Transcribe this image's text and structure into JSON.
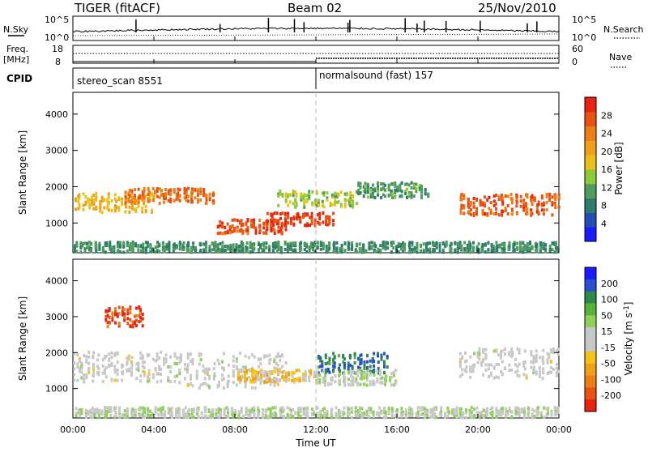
{
  "header": {
    "station": "TIGER (fitACF)",
    "beam": "Beam 02",
    "date": "25/Nov/2010"
  },
  "top_panels": {
    "nsky_label": "N.Sky",
    "nsky_ticks": [
      "10^5",
      "10^0"
    ],
    "nsearch_label": "N.Search",
    "nsearch_ticks": [
      "10^5",
      "10^0"
    ],
    "freq_label": "Freq.",
    "freq_unit": "[MHz]",
    "freq_ticks": [
      "18",
      "8"
    ],
    "nave_label": "Nave",
    "nave_ticks": [
      "60",
      "0"
    ],
    "cpid_label": "CPID",
    "cpid_segments": [
      {
        "name": "stereo_scan 8551",
        "start_hour": 0,
        "end_hour": 12.0
      },
      {
        "name": "normalsound (fast) 157",
        "start_hour": 12.0,
        "end_hour": 24
      }
    ]
  },
  "x_axis": {
    "label": "Time UT",
    "ticks": [
      "00:00",
      "04:00",
      "08:00",
      "12:00",
      "16:00",
      "20:00",
      "00:00"
    ],
    "hours": [
      0,
      4,
      8,
      12,
      16,
      20,
      24
    ]
  },
  "y_axis": {
    "label": "Slant Range [km]",
    "ticks": [
      "1000",
      "2000",
      "3000",
      "4000"
    ],
    "values": [
      1000,
      2000,
      3000,
      4000
    ],
    "range": [
      180,
      4600
    ]
  },
  "power_colorbar": {
    "label": "Power [dB]",
    "ticks": [
      "4",
      "8",
      "12",
      "16",
      "20",
      "24",
      "28"
    ],
    "colors": [
      "#1a1aff",
      "#1f4fb5",
      "#2e7d6b",
      "#4f9c5c",
      "#8ecb3a",
      "#e8c21a",
      "#f0a019",
      "#ee7f17",
      "#ea5212",
      "#e8230f"
    ]
  },
  "velocity_colorbar": {
    "label": "Velocity [m s-1]",
    "ticks": [
      "200",
      "100",
      "50",
      "15",
      "-15",
      "-50",
      "-100",
      "-200"
    ],
    "colors": [
      "#1a1aff",
      "#2a4fd0",
      "#2e8a4a",
      "#55b43a",
      "#8fd05a",
      "#c8c8c8",
      "#c8c8c8",
      "#f5c21a",
      "#f0a019",
      "#ee7f17",
      "#ea5212",
      "#e8230f"
    ]
  },
  "chart_data": {
    "type": "heatmap",
    "panels": [
      {
        "name": "power",
        "units": "dB",
        "scale": [
          0,
          30
        ],
        "features": [
          {
            "hour_start": 0.0,
            "hour_end": 4.0,
            "range_center": 1550,
            "range_width": 380,
            "value": 18
          },
          {
            "hour_start": 2.5,
            "hour_end": 7.0,
            "range_center": 1750,
            "range_width": 300,
            "value": 24
          },
          {
            "hour_start": 7.0,
            "hour_end": 10.5,
            "range_center": 900,
            "range_width": 280,
            "value": 26
          },
          {
            "hour_start": 9.5,
            "hour_end": 12.8,
            "range_center": 1100,
            "range_width": 260,
            "value": 27
          },
          {
            "hour_start": 10.0,
            "hour_end": 14.0,
            "range_center": 1650,
            "range_width": 320,
            "value": 14
          },
          {
            "hour_start": 14.0,
            "hour_end": 17.5,
            "range_center": 1900,
            "range_width": 300,
            "value": 10
          },
          {
            "hour_start": 19.0,
            "hour_end": 24.0,
            "range_center": 1500,
            "range_width": 420,
            "value": 25
          },
          {
            "hour_start": 0.0,
            "hour_end": 24.0,
            "range_center": 330,
            "range_width": 200,
            "value": 9
          }
        ]
      },
      {
        "name": "velocity",
        "units": "m s-1",
        "scale": [
          -250,
          250
        ],
        "features": [
          {
            "hour_start": 0.0,
            "hour_end": 5.0,
            "range_center": 1600,
            "range_width": 600,
            "value": 0
          },
          {
            "hour_start": 1.5,
            "hour_end": 3.5,
            "range_center": 3000,
            "range_width": 400,
            "value": -200
          },
          {
            "hour_start": 5.0,
            "hour_end": 10.5,
            "range_center": 1500,
            "range_width": 700,
            "value": 0
          },
          {
            "hour_start": 8.0,
            "hour_end": 12.0,
            "range_center": 1350,
            "range_width": 250,
            "value": -60
          },
          {
            "hour_start": 12.0,
            "hour_end": 15.5,
            "range_center": 1700,
            "range_width": 400,
            "value": 160
          },
          {
            "hour_start": 12.0,
            "hour_end": 16.0,
            "range_center": 1300,
            "range_width": 300,
            "value": 30
          },
          {
            "hour_start": 19.0,
            "hour_end": 24.0,
            "range_center": 1700,
            "range_width": 600,
            "value": 0
          },
          {
            "hour_start": 0.0,
            "hour_end": 24.0,
            "range_center": 330,
            "range_width": 200,
            "value": 25
          }
        ]
      }
    ],
    "time_range_hours": [
      0,
      24
    ],
    "range_km": [
      180,
      4600
    ]
  }
}
